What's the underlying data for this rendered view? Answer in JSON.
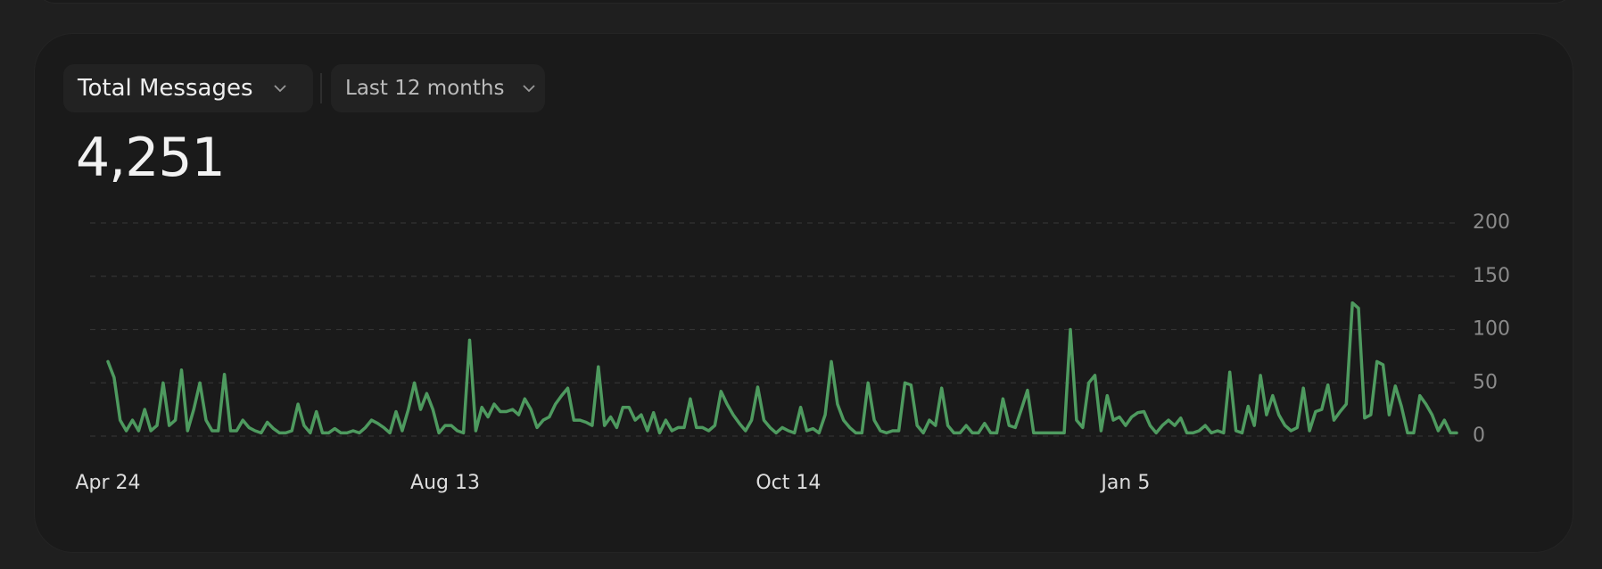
{
  "header": {
    "metric": "Total Messages",
    "period": "Last 12 months"
  },
  "total": "4,251",
  "chart_data": {
    "type": "line",
    "color": "#4e9a5f",
    "grid": true,
    "ylim": [
      0,
      200
    ],
    "yticks": [
      0,
      50,
      100,
      150,
      200
    ],
    "categories": [
      "Apr 24",
      null,
      null,
      null,
      null,
      null,
      null,
      null,
      null,
      null,
      null,
      null,
      null,
      null,
      null,
      null,
      null,
      null,
      null,
      null,
      null,
      null,
      null,
      null,
      null,
      null,
      null,
      null,
      null,
      null,
      null,
      null,
      null,
      null,
      null,
      null,
      null,
      null,
      null,
      null,
      null,
      null,
      null,
      null,
      null,
      null,
      null,
      null,
      null,
      null,
      null,
      null,
      null,
      null,
      null,
      "Aug 13",
      null,
      null,
      null,
      null,
      null,
      null,
      null,
      null,
      null,
      null,
      null,
      null,
      null,
      null,
      null,
      null,
      null,
      null,
      null,
      null,
      null,
      null,
      null,
      null,
      null,
      null,
      null,
      null,
      null,
      null,
      null,
      null,
      null,
      null,
      null,
      null,
      null,
      null,
      null,
      null,
      null,
      null,
      null,
      null,
      null,
      null,
      null,
      null,
      null,
      null,
      null,
      null,
      null,
      null,
      null,
      "Oct 14",
      null,
      null,
      null,
      null,
      null,
      null,
      null,
      null,
      null,
      null,
      null,
      null,
      null,
      null,
      null,
      null,
      null,
      null,
      null,
      null,
      null,
      null,
      null,
      null,
      null,
      null,
      null,
      null,
      null,
      null,
      null,
      null,
      null,
      null,
      null,
      null,
      null,
      null,
      null,
      null,
      null,
      null,
      null,
      null,
      null,
      null,
      null,
      null,
      null,
      null,
      null,
      null,
      null,
      null,
      "Jan 5",
      null,
      null,
      null,
      null,
      null,
      null,
      null,
      null,
      null,
      null,
      null,
      null,
      null,
      null,
      null,
      null,
      null,
      null,
      null,
      null,
      null,
      null,
      null,
      null,
      null,
      null,
      null,
      null,
      null,
      null,
      null,
      null,
      null,
      null,
      null,
      null,
      null,
      null,
      null,
      null,
      null,
      null,
      null,
      null,
      null,
      null,
      null,
      null,
      null,
      null,
      null,
      null,
      null,
      null
    ],
    "values": [
      70,
      55,
      15,
      5,
      15,
      5,
      25,
      5,
      10,
      50,
      10,
      15,
      62,
      5,
      25,
      50,
      15,
      5,
      5,
      58,
      5,
      5,
      15,
      8,
      5,
      3,
      13,
      7,
      3,
      3,
      5,
      30,
      10,
      3,
      23,
      3,
      3,
      7,
      3,
      3,
      5,
      3,
      8,
      15,
      12,
      8,
      3,
      23,
      5,
      25,
      50,
      25,
      40,
      25,
      3,
      10,
      10,
      5,
      3,
      90,
      5,
      27,
      18,
      30,
      23,
      23,
      25,
      20,
      35,
      25,
      8,
      15,
      18,
      30,
      38,
      45,
      15,
      15,
      13,
      10,
      65,
      10,
      18,
      8,
      27,
      27,
      15,
      20,
      5,
      22,
      3,
      15,
      5,
      8,
      8,
      35,
      8,
      8,
      5,
      10,
      42,
      30,
      20,
      12,
      5,
      15,
      46,
      15,
      8,
      3,
      8,
      5,
      3,
      27,
      5,
      7,
      3,
      20,
      70,
      30,
      15,
      8,
      3,
      3,
      50,
      15,
      5,
      3,
      5,
      5,
      50,
      48,
      10,
      3,
      15,
      10,
      45,
      10,
      3,
      3,
      10,
      3,
      3,
      12,
      3,
      3,
      35,
      10,
      8,
      25,
      43,
      3,
      3,
      3,
      3,
      3,
      3,
      100,
      15,
      8,
      50,
      57,
      5,
      38,
      15,
      18,
      10,
      18,
      22,
      23,
      10,
      3,
      10,
      15,
      10,
      17,
      3,
      3,
      5,
      10,
      3,
      5,
      3,
      60,
      5,
      3,
      28,
      10,
      57,
      20,
      38,
      20,
      10,
      5,
      8,
      45,
      5,
      23,
      25,
      48,
      15,
      23,
      30,
      125,
      120,
      17,
      20,
      70,
      67,
      20,
      47,
      28,
      3,
      3,
      38,
      30,
      20,
      5,
      15,
      3,
      3
    ]
  }
}
